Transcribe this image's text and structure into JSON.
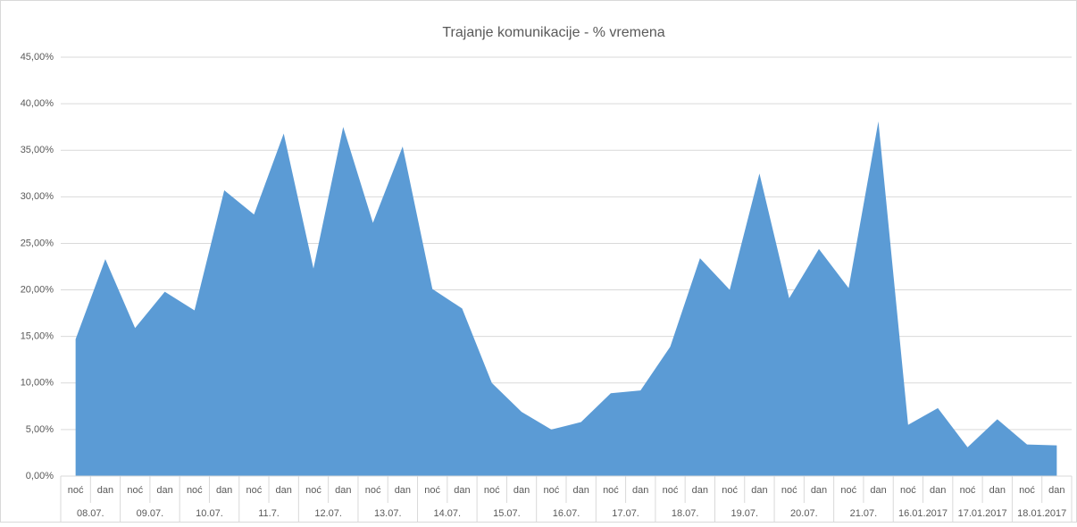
{
  "chart_data": {
    "type": "area",
    "title": "Trajanje komunikacije - % vremena",
    "categories": [
      "noć",
      "dan",
      "noć",
      "dan",
      "noć",
      "dan",
      "noć",
      "dan",
      "noć",
      "dan",
      "noć",
      "dan",
      "noć",
      "dan",
      "noć",
      "dan",
      "noć",
      "dan",
      "noć",
      "dan",
      "noć",
      "dan",
      "noć",
      "dan",
      "noć",
      "dan",
      "noć",
      "dan",
      "noć",
      "dan",
      "noć",
      "dan",
      "noć",
      "dan"
    ],
    "groups": [
      "08.07.",
      "09.07.",
      "10.07.",
      "11.7.",
      "12.07.",
      "13.07.",
      "14.07.",
      "15.07.",
      "16.07.",
      "17.07.",
      "18.07.",
      "19.07.",
      "20.07.",
      "21.07.",
      "16.01.2017",
      "17.01.2017",
      "18.01.2017"
    ],
    "values": [
      14.7,
      23.3,
      15.9,
      19.8,
      17.8,
      30.7,
      28.1,
      36.8,
      22.3,
      37.5,
      27.2,
      35.4,
      20.1,
      18.0,
      10.0,
      6.9,
      5.0,
      5.8,
      8.9,
      9.2,
      13.9,
      23.4,
      20.0,
      32.5,
      19.1,
      24.4,
      20.2,
      38.1,
      5.5,
      7.3,
      3.1,
      6.1,
      3.4,
      3.3
    ],
    "color": "#5b9bd5",
    "ylim": [
      0,
      45
    ],
    "yticks": [
      {
        "value": 0,
        "label": "0,00%"
      },
      {
        "value": 5,
        "label": "5,00%"
      },
      {
        "value": 10,
        "label": "10,00%"
      },
      {
        "value": 15,
        "label": "15,00%"
      },
      {
        "value": 20,
        "label": "20,00%"
      },
      {
        "value": 25,
        "label": "25,00%"
      },
      {
        "value": 30,
        "label": "30,00%"
      },
      {
        "value": 35,
        "label": "35,00%"
      },
      {
        "value": 40,
        "label": "40,00%"
      },
      {
        "value": 45,
        "label": "45,00%"
      }
    ],
    "grid": true
  }
}
